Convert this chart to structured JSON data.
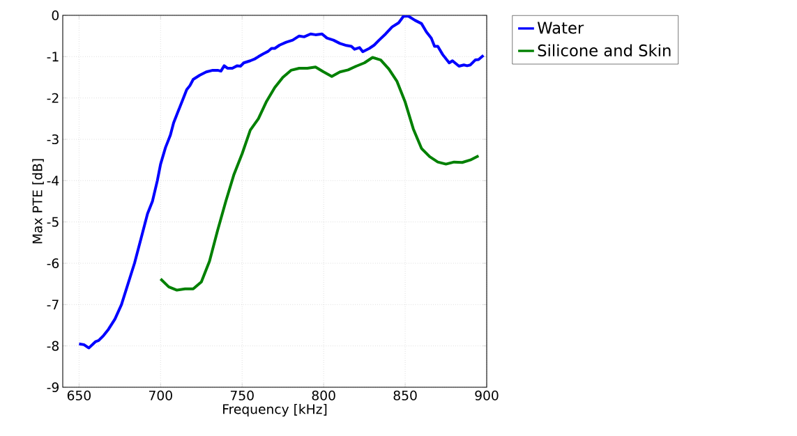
{
  "chart_data": {
    "type": "line",
    "xlabel": "Frequency [kHz]",
    "ylabel": "Max PTE [dB]",
    "xlim": [
      640,
      900
    ],
    "xticks": [
      650,
      700,
      750,
      800,
      850,
      900
    ],
    "ylim": [
      -9,
      0
    ],
    "yticks": [
      -9,
      -8,
      -7,
      -6,
      -5,
      -4,
      -3,
      -2,
      -1,
      0
    ],
    "grid": true,
    "legend": "top right",
    "line_style": "solid",
    "marker": "none",
    "series": [
      {
        "name": "Water",
        "color": "#0000ff",
        "x": [
          650,
          653,
          656,
          660,
          662,
          665,
          668,
          672,
          676,
          680,
          684,
          688,
          692,
          695,
          698,
          700,
          703,
          706,
          708,
          711,
          714,
          716,
          718,
          720,
          724,
          728,
          732,
          735,
          737,
          739,
          741,
          744,
          747,
          749,
          751,
          755,
          758,
          760,
          763,
          766,
          768,
          770,
          773,
          777,
          781,
          785,
          788,
          792,
          795,
          799,
          802,
          806,
          810,
          814,
          817,
          819,
          822,
          824,
          828,
          831,
          834,
          838,
          842,
          846,
          849,
          852,
          856,
          860,
          863,
          866,
          868,
          870,
          873,
          877,
          879,
          883,
          886,
          888,
          890,
          893,
          895,
          898
        ],
        "values": [
          -7.95,
          -7.97,
          -8.05,
          -7.9,
          -7.87,
          -7.75,
          -7.6,
          -7.35,
          -7.0,
          -6.5,
          -6.0,
          -5.4,
          -4.8,
          -4.5,
          -4.0,
          -3.6,
          -3.2,
          -2.9,
          -2.6,
          -2.3,
          -2.0,
          -1.8,
          -1.7,
          -1.55,
          -1.45,
          -1.37,
          -1.33,
          -1.33,
          -1.35,
          -1.22,
          -1.28,
          -1.28,
          -1.22,
          -1.23,
          -1.15,
          -1.1,
          -1.05,
          -1.0,
          -0.93,
          -0.87,
          -0.8,
          -0.8,
          -0.72,
          -0.65,
          -0.6,
          -0.5,
          -0.52,
          -0.45,
          -0.47,
          -0.45,
          -0.55,
          -0.6,
          -0.68,
          -0.73,
          -0.75,
          -0.82,
          -0.78,
          -0.88,
          -0.8,
          -0.72,
          -0.6,
          -0.45,
          -0.28,
          -0.18,
          -0.02,
          -0.02,
          -0.12,
          -0.2,
          -0.4,
          -0.55,
          -0.75,
          -0.75,
          -0.95,
          -1.15,
          -1.1,
          -1.23,
          -1.2,
          -1.22,
          -1.2,
          -1.08,
          -1.07,
          -0.97
        ]
      },
      {
        "name": "Silicone and Skin",
        "color": "#008000",
        "x": [
          700,
          705,
          710,
          715,
          720,
          725,
          730,
          735,
          740,
          745,
          750,
          755,
          760,
          765,
          770,
          775,
          780,
          785,
          790,
          795,
          800,
          805,
          810,
          815,
          820,
          825,
          830,
          835,
          840,
          845,
          850,
          855,
          860,
          865,
          870,
          875,
          880,
          885,
          890,
          895
        ],
        "values": [
          -6.38,
          -6.57,
          -6.65,
          -6.62,
          -6.62,
          -6.45,
          -5.95,
          -5.2,
          -4.5,
          -3.85,
          -3.35,
          -2.78,
          -2.5,
          -2.08,
          -1.75,
          -1.5,
          -1.33,
          -1.28,
          -1.28,
          -1.25,
          -1.37,
          -1.48,
          -1.37,
          -1.32,
          -1.23,
          -1.15,
          -1.02,
          -1.08,
          -1.3,
          -1.6,
          -2.1,
          -2.75,
          -3.22,
          -3.42,
          -3.55,
          -3.6,
          -3.55,
          -3.56,
          -3.5,
          -3.4
        ]
      }
    ]
  }
}
